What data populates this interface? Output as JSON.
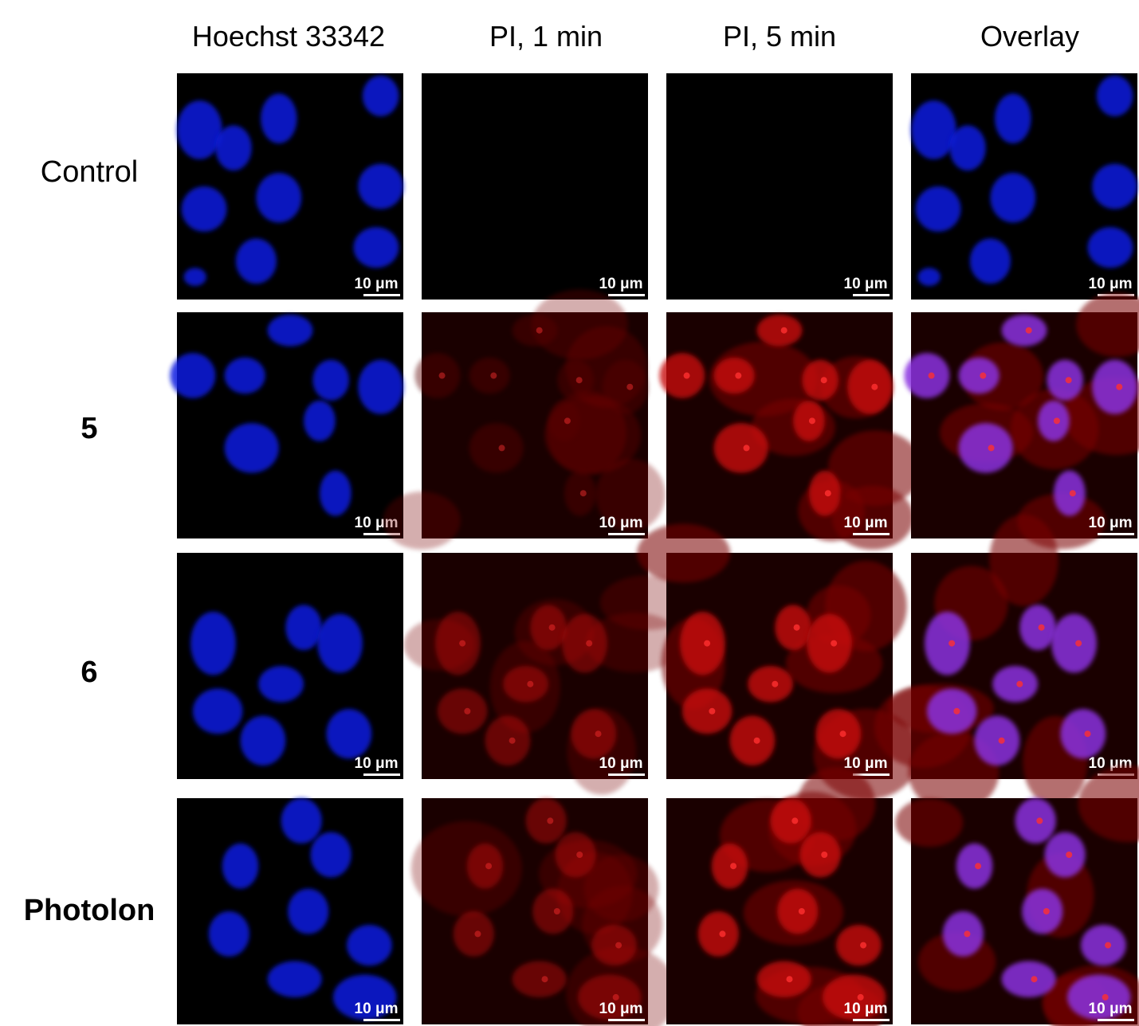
{
  "columns": [
    "Hoechst 33342",
    "PI, 1 min",
    "PI, 5 min",
    "Overlay"
  ],
  "rows": [
    {
      "label": "Control",
      "bold": false,
      "scale_bars": [
        "10 μm",
        "10 μm",
        "10 μm",
        "10 μm"
      ]
    },
    {
      "label": "5",
      "bold": true,
      "scale_bars": [
        "10 μm",
        "10 μm",
        "10 μm",
        "10 μm"
      ]
    },
    {
      "label": "6",
      "bold": true,
      "scale_bars": [
        "10 μm",
        "10 μm",
        "10 μm",
        "10 μm"
      ]
    },
    {
      "label": "Photolon",
      "bold": true,
      "scale_bars": [
        "10 μm",
        "10 μm",
        "10 μm",
        "10 μm"
      ]
    }
  ]
}
